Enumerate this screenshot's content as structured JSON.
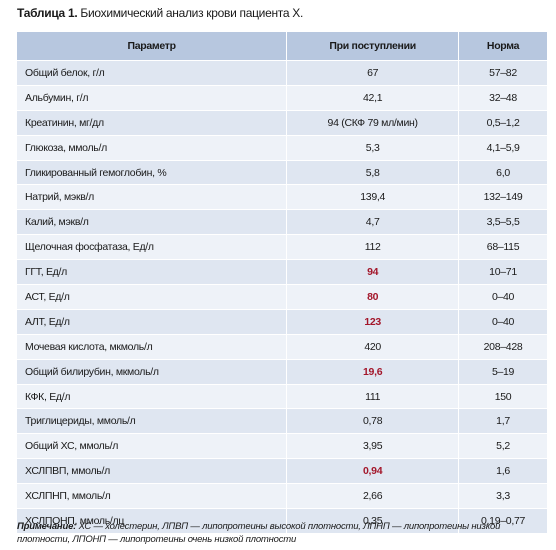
{
  "caption": {
    "label": "Таблица 1.",
    "text": "Биохимический анализ крови пациента Х."
  },
  "table": {
    "header": [
      "Параметр",
      "При поступлении",
      "Норма"
    ],
    "rows": [
      {
        "cells": [
          "Общий белок, г/л",
          "67",
          "57–82"
        ]
      },
      {
        "cells": [
          "Альбумин, г/л",
          "42,1",
          "32–48"
        ]
      },
      {
        "cells": [
          "Креатинин, мг/дл",
          "94 (СКФ 79 мл/мин)",
          "0,5–1,2"
        ]
      },
      {
        "cells": [
          "Глюкоза, ммоль/л",
          "5,3",
          "4,1–5,9"
        ]
      },
      {
        "cells": [
          "Гликированный гемоглобин, %",
          "5,8",
          "6,0"
        ]
      },
      {
        "cells": [
          "Натрий, мэкв/л",
          "139,4",
          "132–149"
        ]
      },
      {
        "cells": [
          "Калий, мэкв/л",
          "4,7",
          "3,5–5,5"
        ]
      },
      {
        "cells": [
          "Щелочная фосфатаза, Ед/л",
          "112",
          "68–115"
        ]
      },
      {
        "cells": [
          "ГГТ, Ед/л",
          "94",
          "10–71"
        ],
        "color": "#a3162a"
      },
      {
        "cells": [
          "АСТ, Ед/л",
          "80",
          "0–40"
        ],
        "color": "#a3162a"
      },
      {
        "cells": [
          "АЛТ, Ед/л",
          "123",
          "0–40"
        ],
        "color": "#a3162a"
      },
      {
        "cells": [
          "Мочевая кислота, мкмоль/л",
          "420",
          "208–428"
        ]
      },
      {
        "cells": [
          "Общий билирубин, мкмоль/л",
          "19,6",
          "5–19"
        ],
        "color": "#a3162a"
      },
      {
        "cells": [
          "КФК, Ед/л",
          "111",
          "150"
        ]
      },
      {
        "cells": [
          "Триглицериды, ммоль/л",
          "0,78",
          "1,7"
        ]
      },
      {
        "cells": [
          "Общий ХС, ммоль/л",
          "3,95",
          "5,2"
        ]
      },
      {
        "cells": [
          "ХСЛПВП, ммоль/л",
          "0,94",
          "1,6"
        ],
        "color": "#a3162a"
      },
      {
        "cells": [
          "ХСЛПНП, ммоль/л",
          "2,66",
          "3,3"
        ]
      },
      {
        "cells": [
          "ХСЛПОНП, ммоль/лц",
          "0,35",
          "0,19–0,77"
        ]
      }
    ]
  },
  "note": {
    "label": "Примечание:",
    "text": "ХС — холестерин, ЛПВП — липопротеины высокой плотности, ЛПНП — липопротеины низкой плотности, ЛПОНП — липопротеины очень низкой плотности"
  }
}
